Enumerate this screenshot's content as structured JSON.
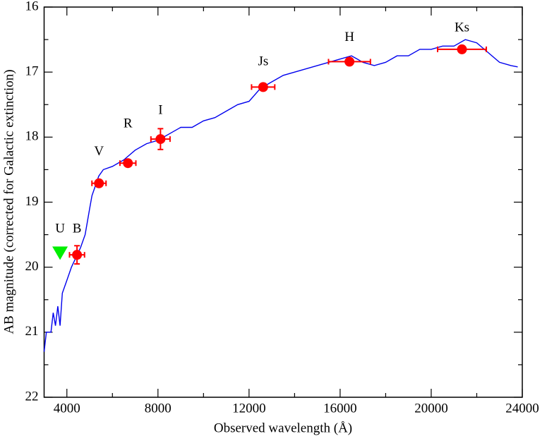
{
  "chart_data": {
    "type": "scatter",
    "xlabel": "Observed wavelength (Å)",
    "ylabel": "AB magnitude (corrected for Galactic extinction)",
    "xlim": [
      3000,
      24000
    ],
    "ylim": [
      16,
      22
    ],
    "y_inverted": true,
    "xticks": [
      4000,
      8000,
      12000,
      16000,
      20000,
      24000
    ],
    "yticks": [
      16,
      17,
      18,
      19,
      20,
      21,
      22
    ],
    "line": {
      "color": "#0000ee",
      "x": [
        3000,
        3100,
        3300,
        3400,
        3500,
        3600,
        3700,
        3800,
        4000,
        4200,
        4400,
        4600,
        4800,
        4900,
        5000,
        5100,
        5200,
        5400,
        5600,
        6000,
        6500,
        7000,
        7500,
        8000,
        8500,
        9000,
        9500,
        10000,
        10500,
        11000,
        11500,
        12000,
        12500,
        13000,
        13500,
        14000,
        14500,
        15000,
        15500,
        16000,
        16500,
        17000,
        17500,
        18000,
        18500,
        19000,
        19500,
        20000,
        20500,
        21000,
        21500,
        22000,
        22500,
        23000,
        23500,
        23800
      ],
      "values": [
        21.3,
        21.0,
        21.0,
        20.7,
        20.9,
        20.6,
        20.9,
        20.4,
        20.2,
        20.0,
        19.85,
        19.7,
        19.5,
        19.3,
        19.1,
        18.9,
        18.8,
        18.6,
        18.5,
        18.45,
        18.35,
        18.2,
        18.1,
        18.05,
        17.95,
        17.85,
        17.85,
        17.75,
        17.7,
        17.6,
        17.5,
        17.45,
        17.25,
        17.15,
        17.05,
        17.0,
        16.95,
        16.9,
        16.85,
        16.8,
        16.75,
        16.85,
        16.9,
        16.85,
        16.75,
        16.75,
        16.65,
        16.65,
        16.6,
        16.6,
        16.5,
        16.55,
        16.7,
        16.85,
        16.9,
        16.92
      ]
    },
    "points": {
      "color": "#ff0000",
      "labels": [
        "B",
        "V",
        "R",
        "I",
        "Js",
        "H",
        "Ks"
      ],
      "x": [
        4445,
        5410,
        6680,
        8110,
        12620,
        16410,
        21350
      ],
      "values": [
        19.81,
        18.71,
        18.4,
        18.03,
        17.23,
        16.84,
        16.65
      ],
      "xerr": [
        330,
        310,
        350,
        420,
        510,
        920,
        1070
      ],
      "yerr": [
        0.14,
        0.05,
        0.04,
        0.16,
        0.04,
        0.03,
        0.03
      ]
    },
    "upper_limits": {
      "color": "#00ee00",
      "labels": [
        "U"
      ],
      "x": [
        3700
      ],
      "values": [
        19.78
      ]
    }
  }
}
